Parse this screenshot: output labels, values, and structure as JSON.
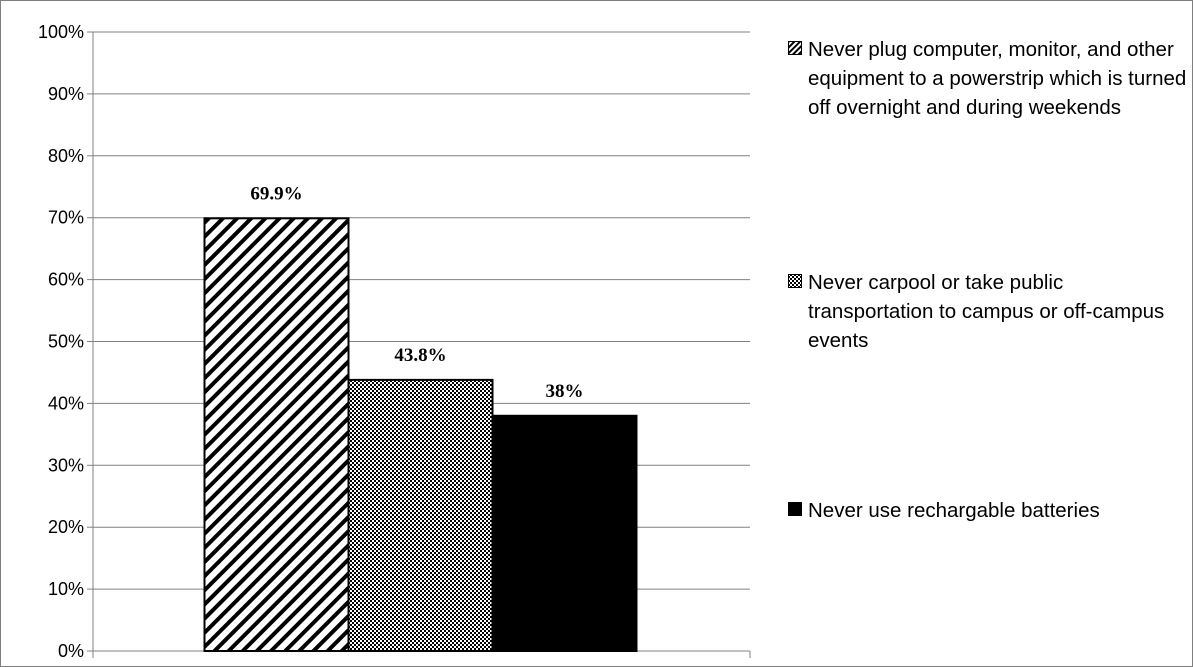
{
  "chart_data": {
    "type": "bar",
    "categories": [
      ""
    ],
    "series": [
      {
        "name": "Never plug computer, monitor, and other equipment to a powerstrip which is turned off overnight and during weekends",
        "values": [
          69.9
        ],
        "label": "69.9%",
        "pattern": "diagonal-hatch"
      },
      {
        "name": "Never carpool or take public transportation to campus or off-campus events",
        "values": [
          43.8
        ],
        "label": "43.8%",
        "pattern": "checker"
      },
      {
        "name": "Never use rechargable batteries",
        "values": [
          38
        ],
        "label": "38%",
        "pattern": "solid"
      }
    ],
    "yticks": [
      "0%",
      "10%",
      "20%",
      "30%",
      "40%",
      "50%",
      "60%",
      "70%",
      "80%",
      "90%",
      "100%"
    ],
    "ylim": [
      0,
      100
    ],
    "grid": true,
    "legend": "right",
    "colors": {
      "bar": "#000000",
      "background": "#ffffff",
      "grid": "#808080",
      "border": "#7f7f7f"
    }
  }
}
